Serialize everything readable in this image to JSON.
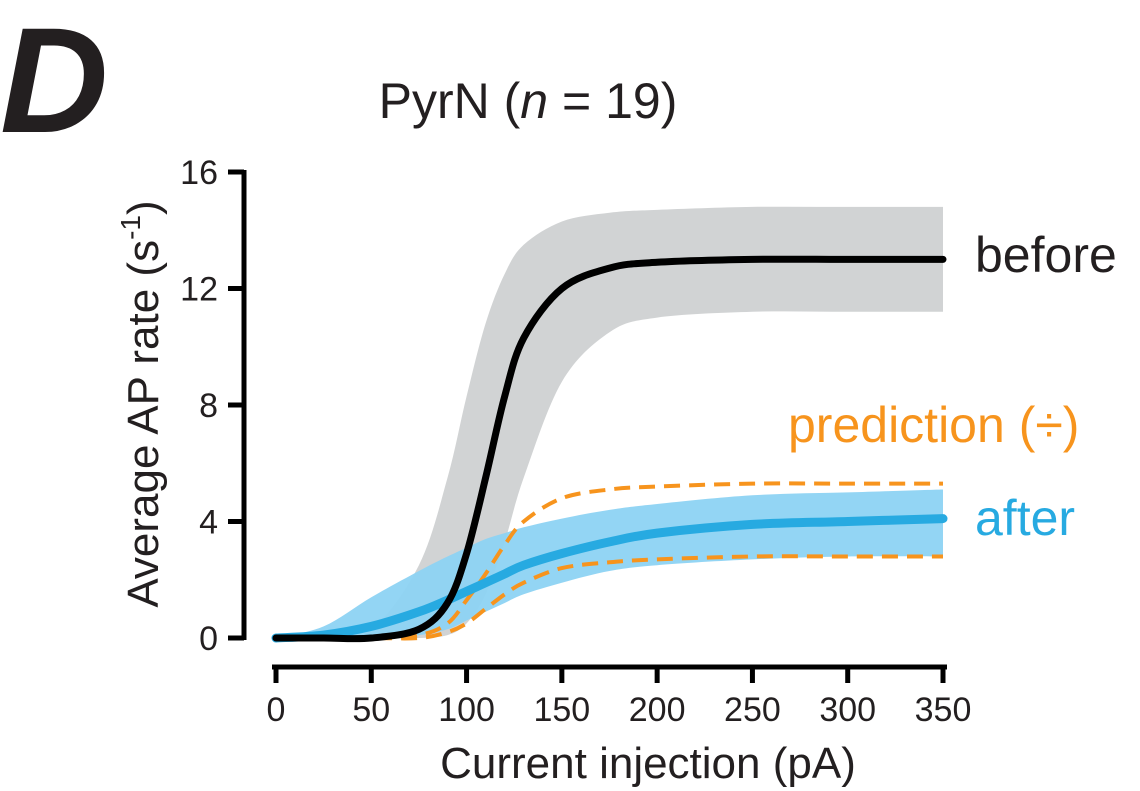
{
  "panel_letter": "D",
  "chart_data": {
    "type": "line",
    "title": {
      "prefix": "PyrN (",
      "n_symbol": "n",
      "n_value": " = 19)"
    },
    "xlabel": "Current injection (pA)",
    "ylabel": {
      "main": "Average AP rate (s",
      "sup": "-1",
      "end": ")"
    },
    "xlim": [
      0,
      350
    ],
    "ylim": [
      0,
      16
    ],
    "xticks": [
      0,
      50,
      100,
      150,
      200,
      250,
      300,
      350
    ],
    "yticks": [
      0,
      4,
      8,
      12,
      16
    ],
    "grid": false,
    "legend": "inline labels at right end of curves",
    "x": [
      0,
      25,
      50,
      75,
      90,
      100,
      110,
      120,
      130,
      150,
      175,
      200,
      250,
      300,
      350
    ],
    "series": [
      {
        "name": "before",
        "style": "solid",
        "color": "#000000",
        "band_color": "#d1d3d4",
        "values": [
          0,
          0,
          0,
          0.3,
          1.2,
          2.9,
          5.5,
          8.3,
          10.3,
          12.0,
          12.7,
          12.9,
          13.0,
          13.0,
          13.0
        ],
        "upper": [
          0,
          0.05,
          0.3,
          2.5,
          5.5,
          8.3,
          10.8,
          12.5,
          13.5,
          14.3,
          14.6,
          14.7,
          14.8,
          14.8,
          14.8
        ],
        "lower": [
          0,
          0,
          0,
          0,
          0.1,
          0.5,
          1.5,
          3.3,
          5.5,
          8.8,
          10.5,
          11.0,
          11.2,
          11.2,
          11.2
        ]
      },
      {
        "name": "after",
        "style": "solid",
        "color": "#27aae1",
        "band_color": "#8dd3f3",
        "values": [
          0,
          0.1,
          0.4,
          0.9,
          1.3,
          1.6,
          1.9,
          2.2,
          2.5,
          2.9,
          3.3,
          3.6,
          3.9,
          4.0,
          4.1
        ],
        "upper": [
          0,
          0.4,
          1.4,
          2.3,
          2.8,
          3.1,
          3.4,
          3.6,
          3.8,
          4.1,
          4.4,
          4.6,
          4.9,
          5.0,
          5.1
        ],
        "lower": [
          0,
          0,
          0,
          0.1,
          0.3,
          0.6,
          0.9,
          1.2,
          1.5,
          1.9,
          2.3,
          2.5,
          2.7,
          2.8,
          2.8
        ]
      },
      {
        "name": "prediction (÷)",
        "style": "dashed",
        "color": "#f7941d",
        "upper": [
          0,
          0,
          0,
          0.1,
          0.5,
          1.3,
          2.2,
          3.2,
          4.0,
          4.8,
          5.1,
          5.2,
          5.3,
          5.3,
          5.3
        ],
        "lower": [
          0,
          0,
          0,
          0,
          0.2,
          0.5,
          1.0,
          1.5,
          1.9,
          2.4,
          2.6,
          2.7,
          2.8,
          2.8,
          2.8
        ]
      }
    ]
  }
}
